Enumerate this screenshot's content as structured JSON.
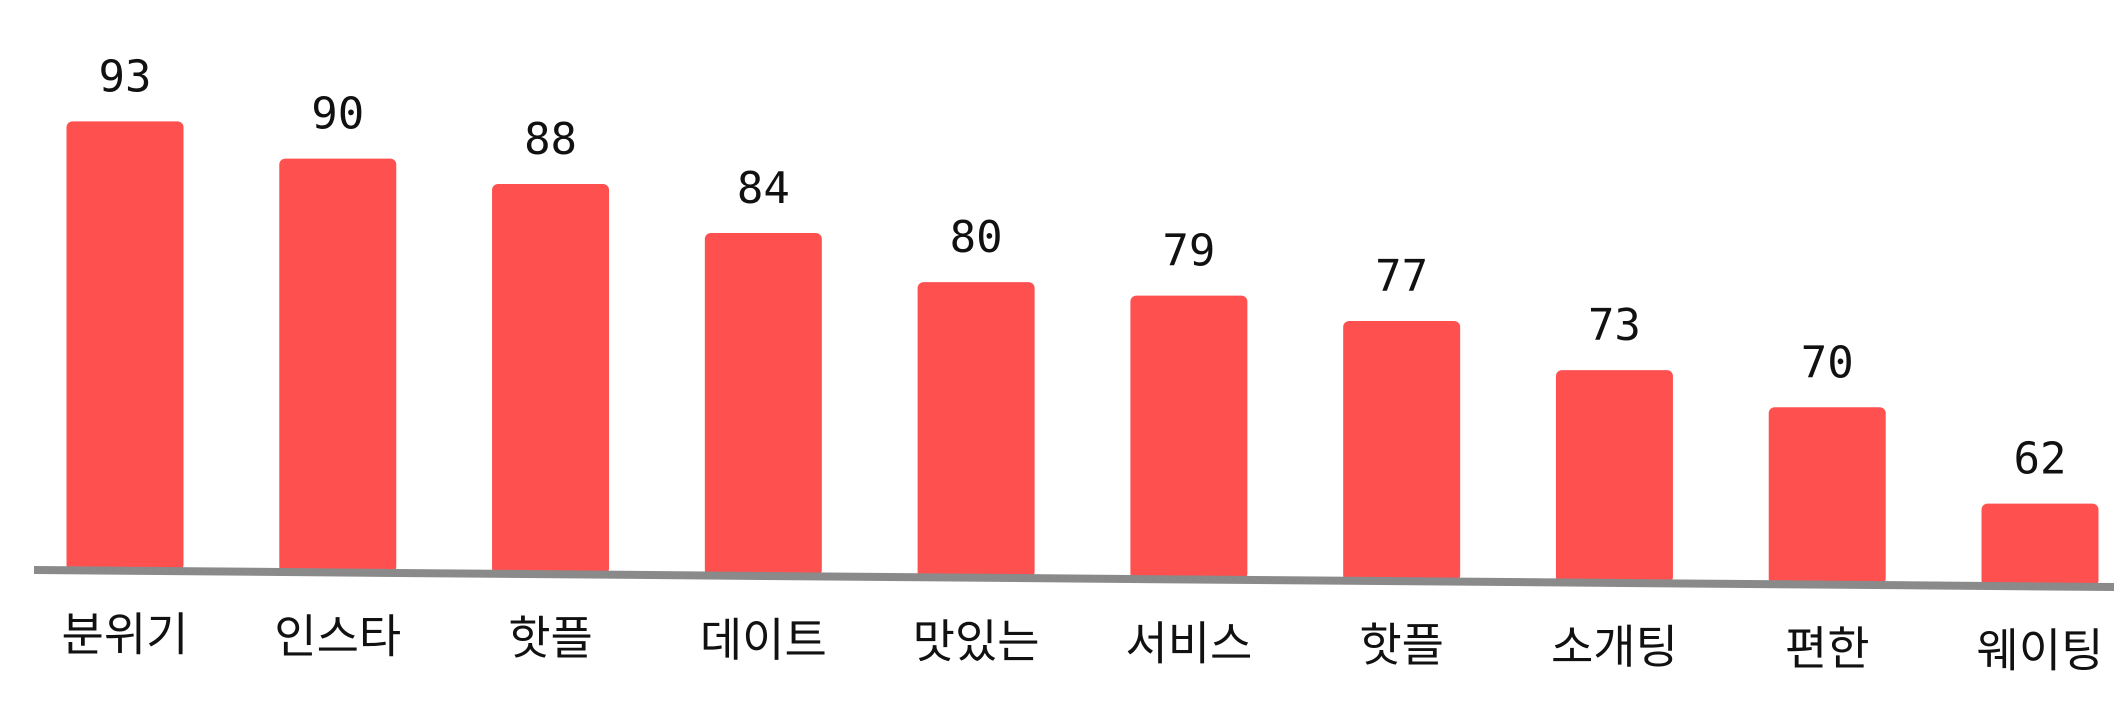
{
  "chart_data": {
    "type": "bar",
    "categories": [
      "분위기",
      "인스타",
      "핫플",
      "데이트",
      "맛있는",
      "서비스",
      "핫플",
      "소개팅",
      "편한",
      "웨이팅"
    ],
    "values": [
      93,
      90,
      88,
      84,
      80,
      79,
      77,
      73,
      70,
      62
    ],
    "title": "",
    "xlabel": "",
    "ylabel": "",
    "ylim": [
      55,
      95
    ],
    "grid": false,
    "bar_color": "#ff5050",
    "axis_color": "#8a8a8a",
    "data_labels": true
  }
}
